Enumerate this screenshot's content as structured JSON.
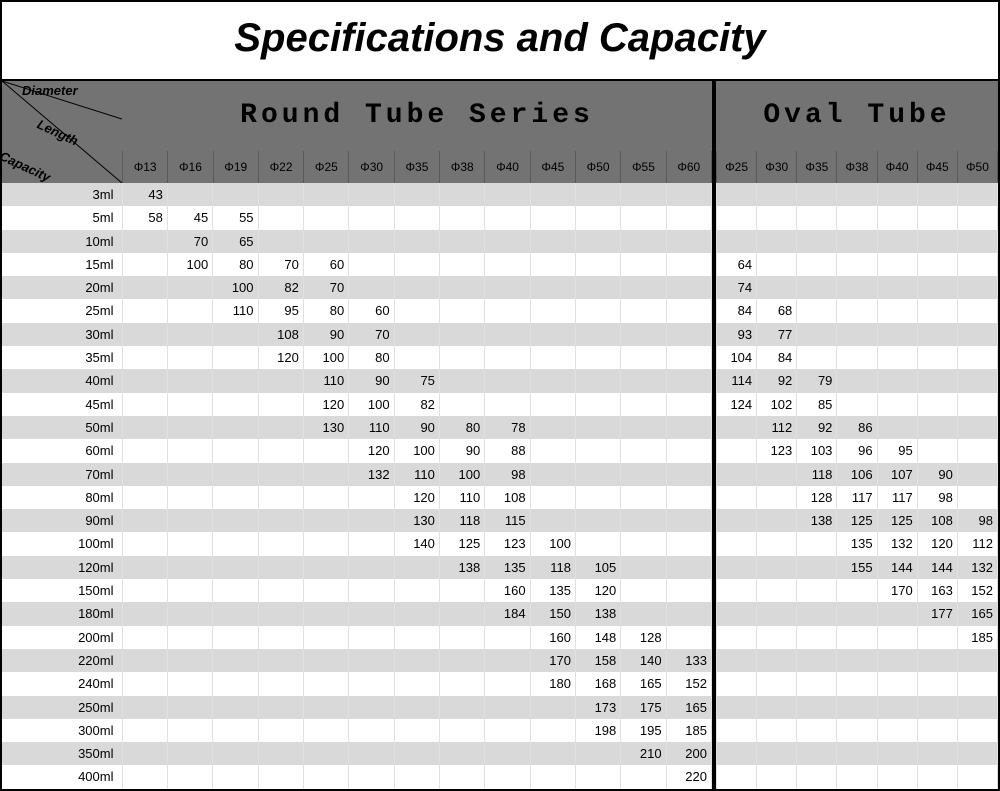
{
  "title": "Specifications and Capacity",
  "corner": {
    "diameter": "Diameter",
    "length": "Length",
    "capacity": "Capacity"
  },
  "round": {
    "heading": "Round Tube Series",
    "columns": [
      "Φ13",
      "Φ16",
      "Φ19",
      "Φ22",
      "Φ25",
      "Φ30",
      "Φ35",
      "Φ38",
      "Φ40",
      "Φ45",
      "Φ50",
      "Φ55",
      "Φ60"
    ]
  },
  "oval": {
    "heading": "Oval Tube",
    "columns": [
      "Φ25",
      "Φ30",
      "Φ35",
      "Φ38",
      "Φ40",
      "Φ45",
      "Φ50"
    ]
  },
  "capacities": [
    "3ml",
    "5ml",
    "10ml",
    "15ml",
    "20ml",
    "25ml",
    "30ml",
    "35ml",
    "40ml",
    "45ml",
    "50ml",
    "60ml",
    "70ml",
    "80ml",
    "90ml",
    "100ml",
    "120ml",
    "150ml",
    "180ml",
    "200ml",
    "220ml",
    "240ml",
    "250ml",
    "300ml",
    "350ml",
    "400ml"
  ],
  "round_rows": [
    [
      "43",
      "",
      "",
      "",
      "",
      "",
      "",
      "",
      "",
      "",
      "",
      "",
      ""
    ],
    [
      "58",
      "45",
      "55",
      "",
      "",
      "",
      "",
      "",
      "",
      "",
      "",
      "",
      ""
    ],
    [
      "",
      "70",
      "65",
      "",
      "",
      "",
      "",
      "",
      "",
      "",
      "",
      "",
      ""
    ],
    [
      "",
      "100",
      "80",
      "70",
      "60",
      "",
      "",
      "",
      "",
      "",
      "",
      "",
      ""
    ],
    [
      "",
      "",
      "100",
      "82",
      "70",
      "",
      "",
      "",
      "",
      "",
      "",
      "",
      ""
    ],
    [
      "",
      "",
      "110",
      "95",
      "80",
      "60",
      "",
      "",
      "",
      "",
      "",
      "",
      ""
    ],
    [
      "",
      "",
      "",
      "108",
      "90",
      "70",
      "",
      "",
      "",
      "",
      "",
      "",
      ""
    ],
    [
      "",
      "",
      "",
      "120",
      "100",
      "80",
      "",
      "",
      "",
      "",
      "",
      "",
      ""
    ],
    [
      "",
      "",
      "",
      "",
      "110",
      "90",
      "75",
      "",
      "",
      "",
      "",
      "",
      ""
    ],
    [
      "",
      "",
      "",
      "",
      "120",
      "100",
      "82",
      "",
      "",
      "",
      "",
      "",
      ""
    ],
    [
      "",
      "",
      "",
      "",
      "130",
      "110",
      "90",
      "80",
      "78",
      "",
      "",
      "",
      ""
    ],
    [
      "",
      "",
      "",
      "",
      "",
      "120",
      "100",
      "90",
      "88",
      "",
      "",
      "",
      ""
    ],
    [
      "",
      "",
      "",
      "",
      "",
      "132",
      "110",
      "100",
      "98",
      "",
      "",
      "",
      ""
    ],
    [
      "",
      "",
      "",
      "",
      "",
      "",
      "120",
      "110",
      "108",
      "",
      "",
      "",
      ""
    ],
    [
      "",
      "",
      "",
      "",
      "",
      "",
      "130",
      "118",
      "115",
      "",
      "",
      "",
      ""
    ],
    [
      "",
      "",
      "",
      "",
      "",
      "",
      "140",
      "125",
      "123",
      "100",
      "",
      "",
      ""
    ],
    [
      "",
      "",
      "",
      "",
      "",
      "",
      "",
      "138",
      "135",
      "118",
      "105",
      "",
      ""
    ],
    [
      "",
      "",
      "",
      "",
      "",
      "",
      "",
      "",
      "160",
      "135",
      "120",
      "",
      ""
    ],
    [
      "",
      "",
      "",
      "",
      "",
      "",
      "",
      "",
      "184",
      "150",
      "138",
      "",
      ""
    ],
    [
      "",
      "",
      "",
      "",
      "",
      "",
      "",
      "",
      "",
      "160",
      "148",
      "128",
      ""
    ],
    [
      "",
      "",
      "",
      "",
      "",
      "",
      "",
      "",
      "",
      "170",
      "158",
      "140",
      "133"
    ],
    [
      "",
      "",
      "",
      "",
      "",
      "",
      "",
      "",
      "",
      "180",
      "168",
      "165",
      "152"
    ],
    [
      "",
      "",
      "",
      "",
      "",
      "",
      "",
      "",
      "",
      "",
      "173",
      "175",
      "165"
    ],
    [
      "",
      "",
      "",
      "",
      "",
      "",
      "",
      "",
      "",
      "",
      "198",
      "195",
      "185"
    ],
    [
      "",
      "",
      "",
      "",
      "",
      "",
      "",
      "",
      "",
      "",
      "",
      "210",
      "200"
    ],
    [
      "",
      "",
      "",
      "",
      "",
      "",
      "",
      "",
      "",
      "",
      "",
      "",
      "220"
    ]
  ],
  "oval_rows": [
    [
      "",
      "",
      "",
      "",
      "",
      "",
      ""
    ],
    [
      "",
      "",
      "",
      "",
      "",
      "",
      ""
    ],
    [
      "",
      "",
      "",
      "",
      "",
      "",
      ""
    ],
    [
      "64",
      "",
      "",
      "",
      "",
      "",
      ""
    ],
    [
      "74",
      "",
      "",
      "",
      "",
      "",
      ""
    ],
    [
      "84",
      "68",
      "",
      "",
      "",
      "",
      ""
    ],
    [
      "93",
      "77",
      "",
      "",
      "",
      "",
      ""
    ],
    [
      "104",
      "84",
      "",
      "",
      "",
      "",
      ""
    ],
    [
      "114",
      "92",
      "79",
      "",
      "",
      "",
      ""
    ],
    [
      "124",
      "102",
      "85",
      "",
      "",
      "",
      ""
    ],
    [
      "",
      "112",
      "92",
      "86",
      "",
      "",
      ""
    ],
    [
      "",
      "123",
      "103",
      "96",
      "95",
      "",
      ""
    ],
    [
      "",
      "",
      "118",
      "106",
      "107",
      "90",
      ""
    ],
    [
      "",
      "",
      "128",
      "117",
      "117",
      "98",
      ""
    ],
    [
      "",
      "",
      "138",
      "125",
      "125",
      "108",
      "98"
    ],
    [
      "",
      "",
      "",
      "135",
      "132",
      "120",
      "112"
    ],
    [
      "",
      "",
      "",
      "155",
      "144",
      "144",
      "132"
    ],
    [
      "",
      "",
      "",
      "",
      "170",
      "163",
      "152"
    ],
    [
      "",
      "",
      "",
      "",
      "",
      "177",
      "165"
    ],
    [
      "",
      "",
      "",
      "",
      "",
      "",
      "185"
    ],
    [
      "",
      "",
      "",
      "",
      "",
      "",
      ""
    ],
    [
      "",
      "",
      "",
      "",
      "",
      "",
      ""
    ],
    [
      "",
      "",
      "",
      "",
      "",
      "",
      ""
    ],
    [
      "",
      "",
      "",
      "",
      "",
      "",
      ""
    ],
    [
      "",
      "",
      "",
      "",
      "",
      "",
      ""
    ],
    [
      "",
      "",
      "",
      "",
      "",
      "",
      ""
    ]
  ],
  "styling": {
    "header_bg": "#737373",
    "row_alt_bg": "#d9d9d9",
    "border_color": "#000000",
    "cell_border_color": "#e0e0e0"
  }
}
